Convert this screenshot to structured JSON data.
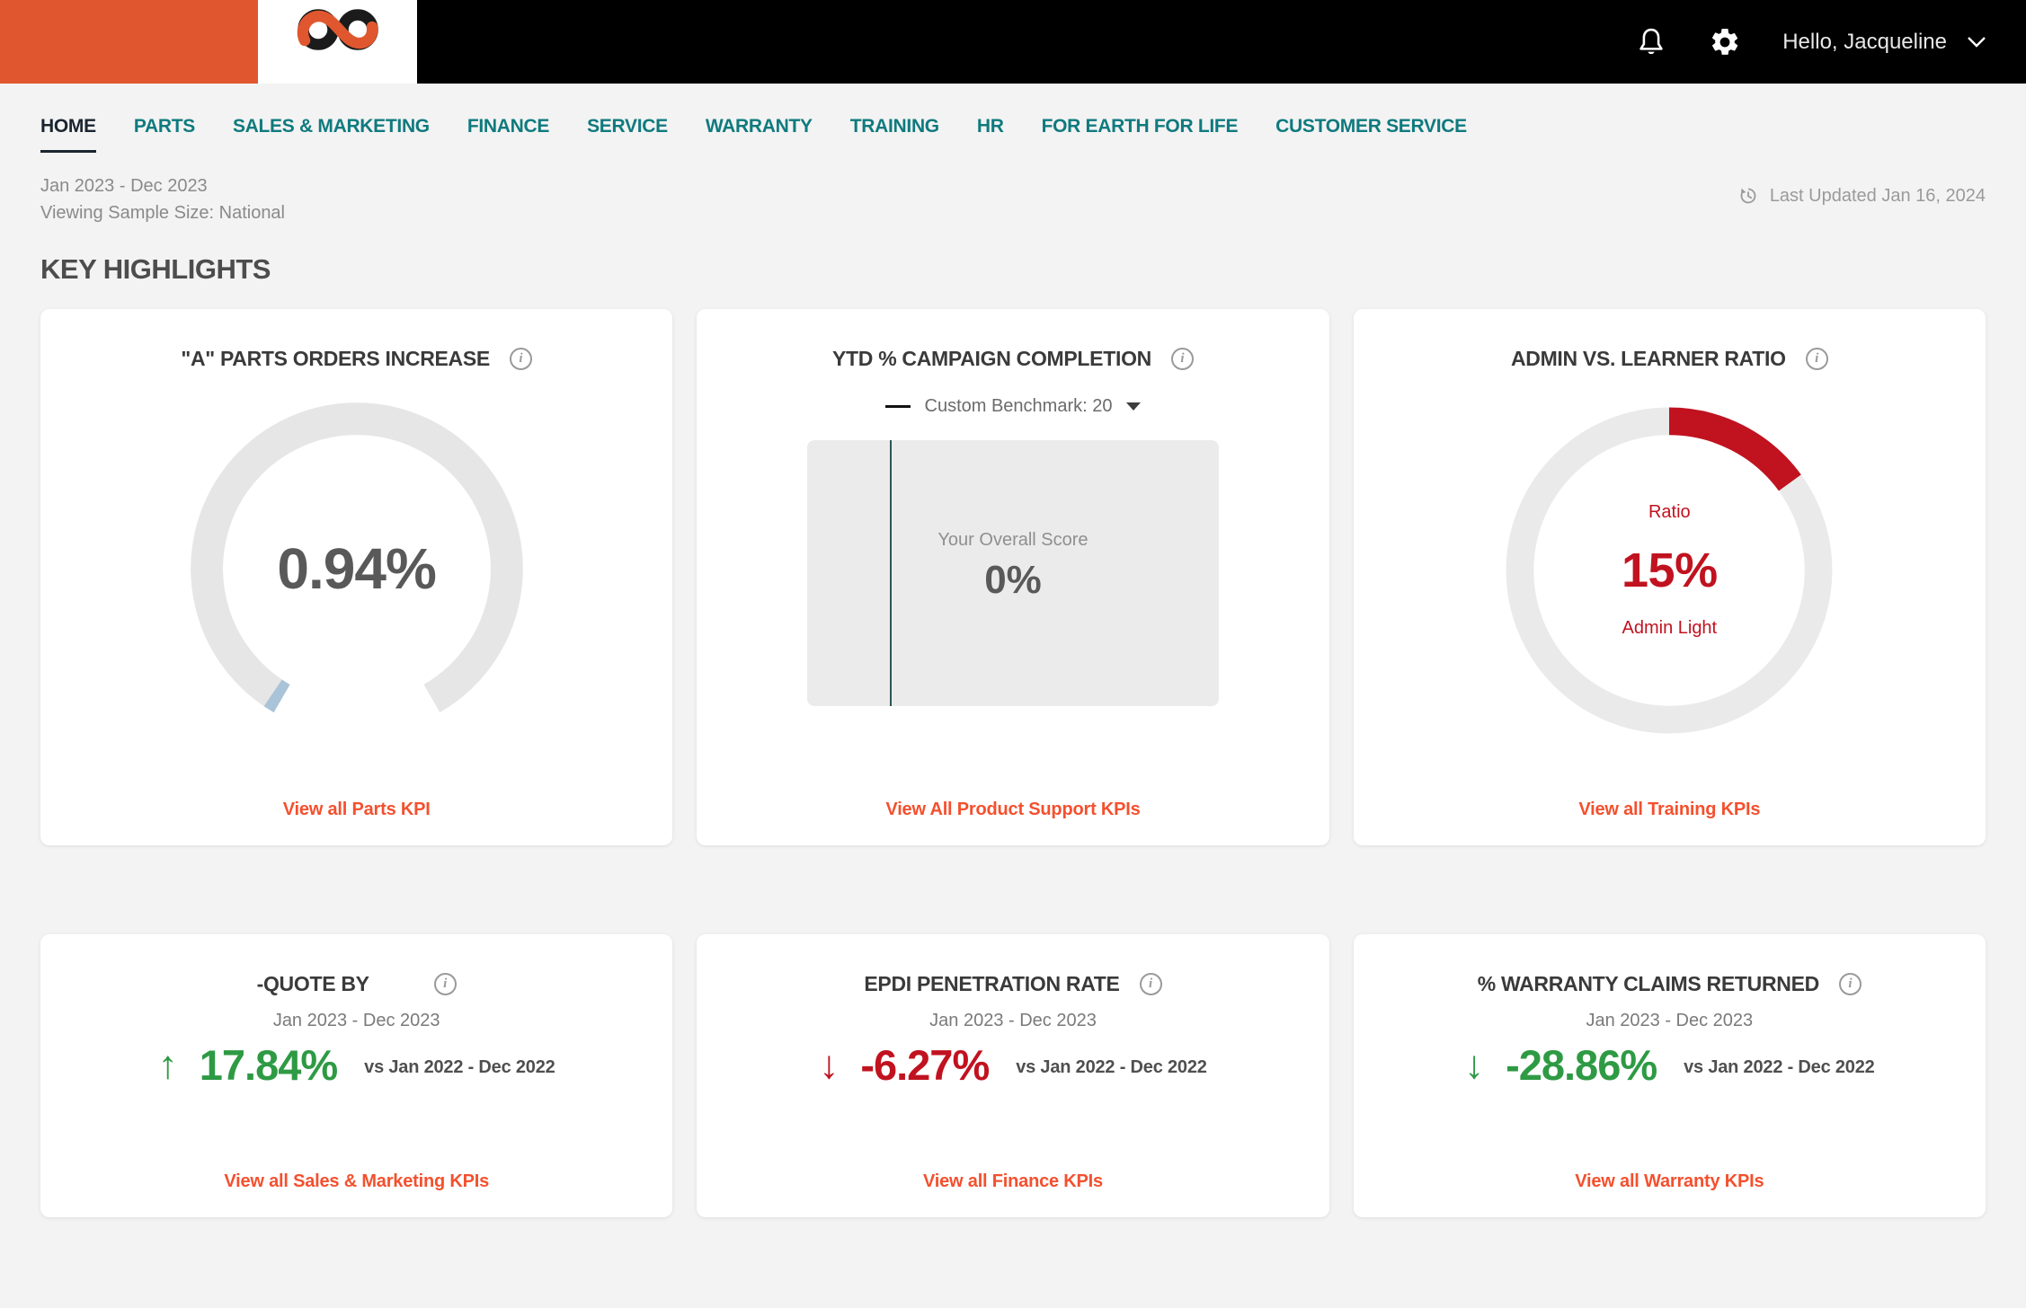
{
  "header": {
    "greeting": "Hello, Jacqueline"
  },
  "nav": {
    "items": [
      {
        "label": "HOME",
        "active": true
      },
      {
        "label": "PARTS"
      },
      {
        "label": "SALES & MARKETING"
      },
      {
        "label": "FINANCE"
      },
      {
        "label": "SERVICE"
      },
      {
        "label": "WARRANTY"
      },
      {
        "label": "TRAINING"
      },
      {
        "label": "HR"
      },
      {
        "label": "FOR EARTH FOR LIFE"
      },
      {
        "label": "CUSTOMER SERVICE"
      }
    ]
  },
  "meta": {
    "period": "Jan 2023 - Dec 2023",
    "sample_size": "Viewing Sample Size: National",
    "last_updated": "Last Updated Jan 16, 2024"
  },
  "page_title": "KEY HIGHLIGHTS",
  "colors": {
    "brand_orange": "#E0572F",
    "nav_teal": "#0F7A7E",
    "link_orange": "#F4502E",
    "negative_red": "#C1121F",
    "positive_green": "#2E9A44",
    "gauge_fill_blue": "#A9C3D8",
    "benchmark_line_teal": "#2E5555"
  },
  "cards": [
    {
      "title": "\"A\" PARTS ORDERS INCREASE",
      "value": "0.94%",
      "link": "View all Parts KPI"
    },
    {
      "title": "YTD % CAMPAIGN COMPLETION",
      "legend": "Custom Benchmark: 20",
      "score_label": "Your Overall Score",
      "score": "0%",
      "link": "View All Product Support KPIs"
    },
    {
      "title": "ADMIN VS. LEARNER RATIO",
      "center_top": "Ratio",
      "center_value": "15%",
      "center_bottom": "Admin Light",
      "link": "View all Training KPIs"
    },
    {
      "title": "-QUOTE BY",
      "period": "Jan 2023 - Dec 2023",
      "arrow": "↑",
      "value": "17.84%",
      "vs": "vs Jan 2022 - Dec 2022",
      "trend": "up-green",
      "link": "View all Sales & Marketing KPIs"
    },
    {
      "title": "EPDI PENETRATION RATE",
      "period": "Jan 2023 - Dec 2023",
      "arrow": "↓",
      "value": "-6.27%",
      "vs": "vs Jan 2022 - Dec 2022",
      "trend": "down-red",
      "link": "View all Finance KPIs"
    },
    {
      "title": "% WARRANTY CLAIMS RETURNED",
      "period": "Jan 2023 - Dec 2023",
      "arrow": "↓",
      "value": "-28.86%",
      "vs": "vs Jan 2022 - Dec 2022",
      "trend": "down-green",
      "link": "View all Warranty KPIs"
    }
  ],
  "chart_data": [
    {
      "type": "gauge",
      "title": "\"A\" PARTS ORDERS INCREASE",
      "value": 0.94,
      "unit": "%",
      "range": [
        0,
        100
      ],
      "sweep_deg": 300,
      "track_color": "#E6E6E6",
      "fill_color": "#A9C3D8",
      "center_label": "0.94%"
    },
    {
      "type": "bullet",
      "title": "YTD % CAMPAIGN COMPLETION",
      "score": 0,
      "benchmark": 20,
      "range": [
        0,
        100
      ],
      "benchmark_label": "Custom Benchmark: 20",
      "score_label": "Your Overall Score",
      "line_color": "#2E5555",
      "track_color": "#EBEBEB"
    },
    {
      "type": "donut",
      "title": "ADMIN VS. LEARNER RATIO",
      "value": 15,
      "unit": "%",
      "center_labels": [
        "Ratio",
        "15%",
        "Admin Light"
      ],
      "fill_color": "#C1121F",
      "track_color": "#EAEAEA"
    }
  ]
}
